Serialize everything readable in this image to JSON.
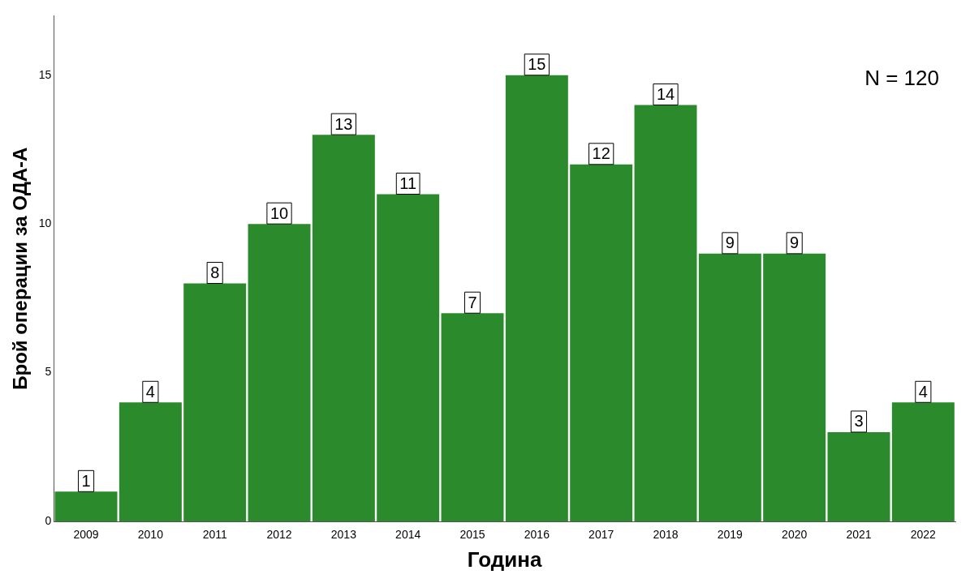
{
  "chart_data": {
    "type": "bar",
    "xlabel": "Година",
    "ylabel": "Брой операции за ОДА-А",
    "categories": [
      "2009",
      "2010",
      "2011",
      "2012",
      "2013",
      "2014",
      "2015",
      "2016",
      "2017",
      "2018",
      "2019",
      "2020",
      "2021",
      "2022"
    ],
    "values": [
      1,
      4,
      8,
      10,
      13,
      11,
      7,
      15,
      12,
      14,
      9,
      9,
      3,
      4
    ],
    "color": "#2b8a2b",
    "ylim": [
      0,
      17
    ],
    "yticks": [
      0,
      5,
      10,
      15
    ],
    "grid": false,
    "data_labels": true,
    "annotations": [
      "N = 120"
    ]
  }
}
